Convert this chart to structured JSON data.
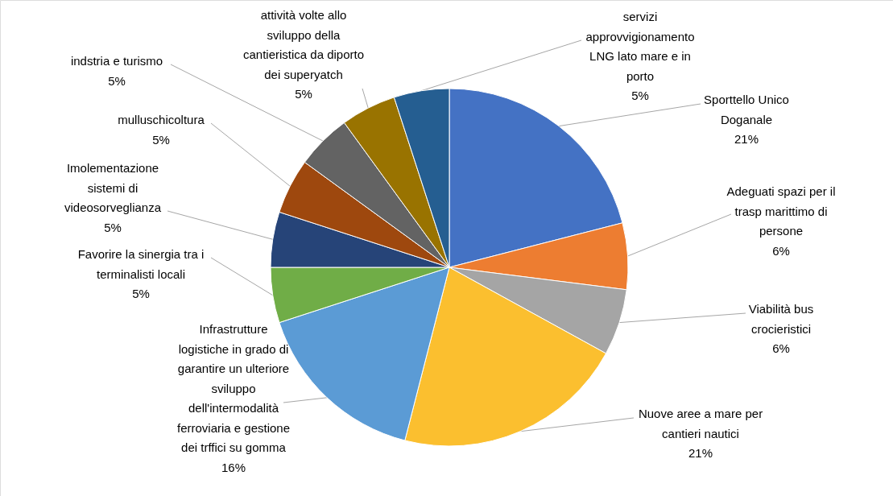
{
  "chart_data": {
    "type": "pie",
    "categories": [
      "Sporttello Unico Doganale",
      "Adeguati spazi per il trasp marittimo di persone",
      "Viabilità bus crocieristici",
      "Nuove aree a mare per cantieri nautici",
      "Infrastrutture logistiche in grado di garantire un ulteriore sviluppo dell'intermodalità ferroviaria e gestione dei trffici su gomma",
      "Favorire la sinergia tra i terminalisti locali",
      "Imolementazione sistemi di videosorveglianza",
      "mulluschicoltura",
      "indstria e turismo",
      "attività volte allo sviluppo della cantieristica da diporto dei superyatch",
      "servizi approvvigionamento LNG lato mare  e in porto"
    ],
    "values": [
      21,
      6,
      6,
      21,
      16,
      5,
      5,
      5,
      5,
      5,
      5
    ],
    "value_labels": [
      "21%",
      "6%",
      "6%",
      "21%",
      "16%",
      "5%",
      "5%",
      "5%",
      "5%",
      "5%",
      "5%"
    ],
    "colors": [
      "#4472c4",
      "#ed7d31",
      "#a5a5a5",
      "#fbbf2f",
      "#5b9bd5",
      "#70ad47",
      "#264478",
      "#9e480e",
      "#636363",
      "#997300",
      "#255e91"
    ]
  }
}
